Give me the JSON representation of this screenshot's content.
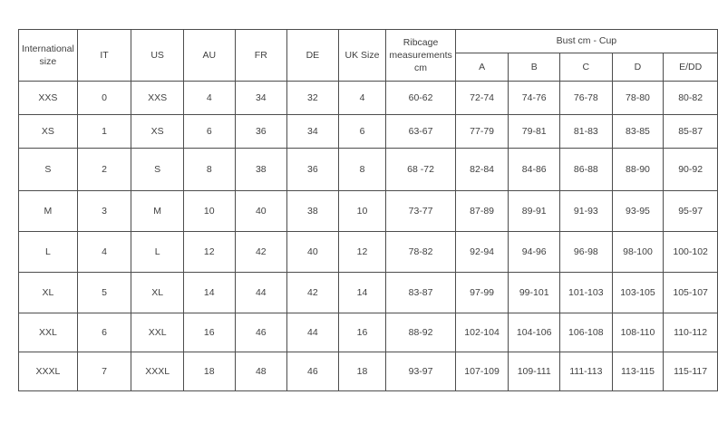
{
  "table": {
    "headers": {
      "international_size": "International size",
      "it": "IT",
      "us": "US",
      "au": "AU",
      "fr": "FR",
      "de": "DE",
      "uk_size": "UK Size",
      "ribcage": "Ribcage measurements cm",
      "bust_group": "Bust cm - Cup",
      "cups": [
        "A",
        "B",
        "C",
        "D",
        "E/DD"
      ]
    },
    "rows": [
      [
        "XXS",
        "0",
        "XXS",
        "4",
        "34",
        "32",
        "4",
        "60-62",
        "72-74",
        "74-76",
        "76-78",
        "78-80",
        "80-82"
      ],
      [
        "XS",
        "1",
        "XS",
        "6",
        "36",
        "34",
        "6",
        "63-67",
        "77-79",
        "79-81",
        "81-83",
        "83-85",
        "85-87"
      ],
      [
        "S",
        "2",
        "S",
        "8",
        "38",
        "36",
        "8",
        "68 -72",
        "82-84",
        "84-86",
        "86-88",
        "88-90",
        "90-92"
      ],
      [
        "M",
        "3",
        "M",
        "10",
        "40",
        "38",
        "10",
        "73-77",
        "87-89",
        "89-91",
        "91-93",
        "93-95",
        "95-97"
      ],
      [
        "L",
        "4",
        "L",
        "12",
        "42",
        "40",
        "12",
        "78-82",
        "92-94",
        "94-96",
        "96-98",
        "98-100",
        "100-102"
      ],
      [
        "XL",
        "5",
        "XL",
        "14",
        "44",
        "42",
        "14",
        "83-87",
        "97-99",
        "99-101",
        "101-103",
        "103-105",
        "105-107"
      ],
      [
        "XXL",
        "6",
        "XXL",
        "16",
        "46",
        "44",
        "16",
        "88-92",
        "102-104",
        "104-106",
        "106-108",
        "108-110",
        "110-112"
      ],
      [
        "XXXL",
        "7",
        "XXXL",
        "18",
        "48",
        "46",
        "18",
        "93-97",
        "107-109",
        "109-111",
        "111-113",
        "113-115",
        "115-117"
      ]
    ],
    "colors": {
      "border": "#4d4d4d",
      "text": "#3f3f3f",
      "background": "#ffffff"
    }
  }
}
